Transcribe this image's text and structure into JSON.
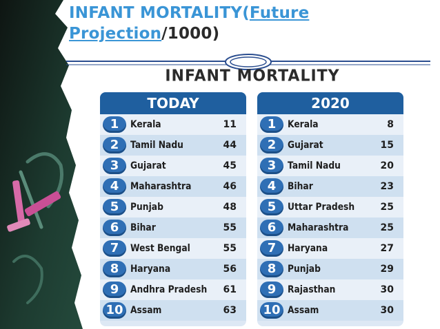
{
  "slide_title": {
    "part1": "INFANT MORTALITY(",
    "part2": "Future",
    "part3": "Projection",
    "part4": "/1000)"
  },
  "infographic": {
    "heading": "INFANT MORTALITY",
    "today": {
      "label": "TODAY",
      "rows": [
        {
          "rank": "1",
          "state": "Kerala",
          "value": "11"
        },
        {
          "rank": "2",
          "state": "Tamil Nadu",
          "value": "44"
        },
        {
          "rank": "3",
          "state": "Gujarat",
          "value": "45"
        },
        {
          "rank": "4",
          "state": "Maharashtra",
          "value": "46"
        },
        {
          "rank": "5",
          "state": "Punjab",
          "value": "48"
        },
        {
          "rank": "6",
          "state": "Bihar",
          "value": "55"
        },
        {
          "rank": "7",
          "state": "West Bengal",
          "value": "55"
        },
        {
          "rank": "8",
          "state": "Haryana",
          "value": "56"
        },
        {
          "rank": "9",
          "state": "Andhra Pradesh",
          "value": "61"
        },
        {
          "rank": "10",
          "state": "Assam",
          "value": "63"
        }
      ]
    },
    "year2020": {
      "label": "2020",
      "rows": [
        {
          "rank": "1",
          "state": "Kerala",
          "value": "8"
        },
        {
          "rank": "2",
          "state": "Gujarat",
          "value": "15"
        },
        {
          "rank": "3",
          "state": "Tamil Nadu",
          "value": "20"
        },
        {
          "rank": "4",
          "state": "Bihar",
          "value": "23"
        },
        {
          "rank": "5",
          "state": "Uttar Pradesh",
          "value": "25"
        },
        {
          "rank": "6",
          "state": "Maharashtra",
          "value": "25"
        },
        {
          "rank": "7",
          "state": "Haryana",
          "value": "27"
        },
        {
          "rank": "8",
          "state": "Punjab",
          "value": "29"
        },
        {
          "rank": "9",
          "state": "Rajasthan",
          "value": "30"
        },
        {
          "rank": "10",
          "state": "Assam",
          "value": "30"
        }
      ]
    }
  },
  "colors": {
    "title_blue": "#3a95d6",
    "panel_header": "#1f5f9f",
    "rank_badge": "#2f6fb5",
    "chalkboard": "#1c2b24"
  }
}
